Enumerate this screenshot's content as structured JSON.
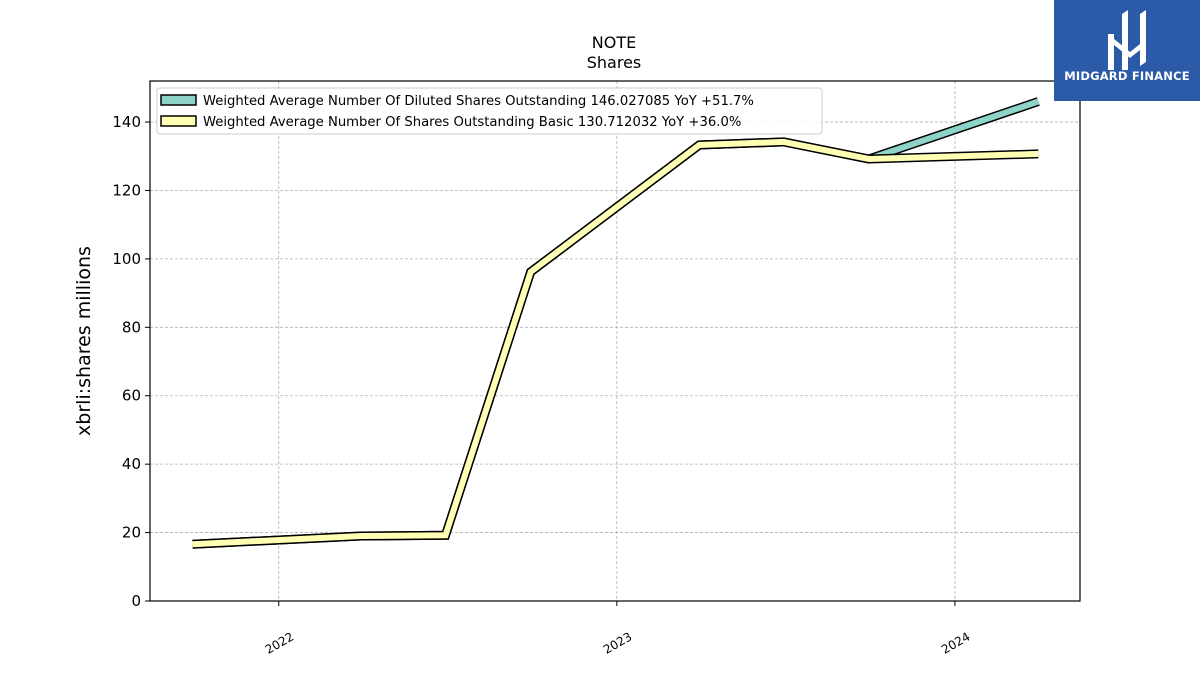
{
  "brand": {
    "name": "MIDGARD FINANCE",
    "bg_color": "#2b5aa8",
    "icon": "midgard-logo-icon"
  },
  "chart_data": {
    "type": "line",
    "title": "NOTE",
    "subtitle": "Shares",
    "ylabel": "xbrli:shares millions",
    "xlabel": "",
    "ylim": [
      0,
      152
    ],
    "yticks": [
      0,
      20,
      40,
      60,
      80,
      100,
      120,
      140
    ],
    "xticks": [
      "2022",
      "2023",
      "2024"
    ],
    "xlim": [
      "2021-08-15",
      "2024-05-15"
    ],
    "grid": true,
    "legend_position": "top-left",
    "series": [
      {
        "name": "Weighted Average Number Of Diluted Shares Outstanding",
        "legend_label": "Weighted Average Number Of Diluted Shares Outstanding  146.027085 YoY +51.7%",
        "color": "#8dd3c7",
        "points": [
          {
            "x": "2021-09-30",
            "y": 16.6
          },
          {
            "x": "2022-03-31",
            "y": 19.0
          },
          {
            "x": "2022-06-30",
            "y": 19.2
          },
          {
            "x": "2022-09-30",
            "y": 96.2
          },
          {
            "x": "2023-03-31",
            "y": 133.3
          },
          {
            "x": "2023-06-30",
            "y": 134.2
          },
          {
            "x": "2023-09-30",
            "y": 129.2
          },
          {
            "x": "2024-03-31",
            "y": 146.0
          }
        ]
      },
      {
        "name": "Weighted Average Number Of Shares Outstanding Basic",
        "legend_label": "Weighted Average Number Of Shares Outstanding Basic  130.712032 YoY +36.0%",
        "color": "#ffffb3",
        "points": [
          {
            "x": "2021-09-30",
            "y": 16.6
          },
          {
            "x": "2022-03-31",
            "y": 19.0
          },
          {
            "x": "2022-06-30",
            "y": 19.2
          },
          {
            "x": "2022-09-30",
            "y": 96.2
          },
          {
            "x": "2023-03-31",
            "y": 133.3
          },
          {
            "x": "2023-06-30",
            "y": 134.2
          },
          {
            "x": "2023-09-30",
            "y": 129.2
          },
          {
            "x": "2024-03-31",
            "y": 130.7
          }
        ]
      }
    ]
  }
}
